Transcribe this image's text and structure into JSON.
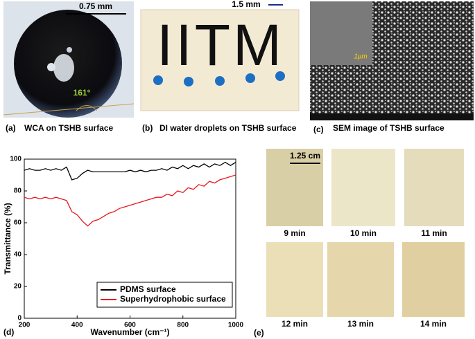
{
  "panel_a": {
    "scale": "0.75 mm",
    "angle": "161°",
    "letter": "(a)",
    "caption": "WCA on TSHB surface"
  },
  "panel_b": {
    "scale": "1.5 mm",
    "letters": "IITM",
    "letter": "(b)",
    "caption": "DI water droplets on TSHB surface"
  },
  "panel_c": {
    "inset_scale": "1μm",
    "letter": "(c)",
    "caption": "SEM image of TSHB surface"
  },
  "panel_d": {
    "letter": "(d)"
  },
  "panel_e": {
    "scale": "1.25 cm",
    "letter": "(e)",
    "times": [
      "9 min",
      "10 min",
      "11 min",
      "12 min",
      "13 min",
      "14 min"
    ]
  },
  "chart_data": {
    "type": "line",
    "xlabel": "Wavenumber (cm⁻¹)",
    "ylabel": "Transmittance (%)",
    "x": [
      200,
      220,
      240,
      260,
      280,
      300,
      320,
      340,
      360,
      380,
      400,
      420,
      440,
      460,
      480,
      500,
      520,
      540,
      560,
      580,
      600,
      620,
      640,
      660,
      680,
      700,
      720,
      740,
      760,
      780,
      800,
      820,
      840,
      860,
      880,
      900,
      920,
      940,
      960,
      980,
      1000
    ],
    "series": [
      {
        "name": "PDMS surface",
        "color": "#000000",
        "values": [
          93,
          94,
          93,
          93,
          94,
          93,
          94,
          93,
          95,
          87,
          88,
          91,
          93,
          92,
          92,
          92,
          92,
          92,
          92,
          92,
          93,
          92,
          93,
          92,
          93,
          93,
          94,
          93,
          95,
          94,
          96,
          94,
          96,
          95,
          97,
          95,
          97,
          96,
          98,
          96,
          98
        ]
      },
      {
        "name": "Superhydrophobic surface",
        "color": "#e8151b",
        "values": [
          76,
          75,
          76,
          75,
          76,
          75,
          76,
          75,
          74,
          67,
          65,
          61,
          58,
          61,
          62,
          64,
          66,
          67,
          69,
          70,
          71,
          72,
          73,
          74,
          75,
          76,
          76,
          78,
          77,
          80,
          79,
          82,
          81,
          84,
          83,
          86,
          85,
          87,
          88,
          89,
          90
        ]
      }
    ],
    "xlim": [
      200,
      1000
    ],
    "ylim": [
      0,
      100
    ],
    "xticks": [
      200,
      400,
      600,
      800,
      1000
    ],
    "yticks": [
      0,
      20,
      40,
      60,
      80,
      100
    ],
    "legend": "lower right"
  }
}
